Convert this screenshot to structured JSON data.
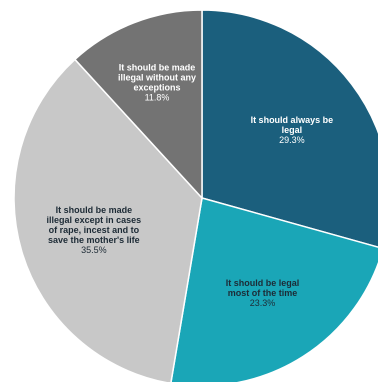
{
  "chart_data": {
    "type": "pie",
    "title": "",
    "slices": [
      {
        "label": [
          "It should always be",
          "legal"
        ],
        "value_label": "29.3%",
        "value": 29.3,
        "color": "#1b5f7d",
        "text_color": "#ffffff"
      },
      {
        "label": [
          "It should be legal",
          "most of the time"
        ],
        "value_label": "23.3%",
        "value": 23.3,
        "color": "#1aa6b7",
        "text_color": "#1d2b36"
      },
      {
        "label": [
          "It should be made",
          "illegal except in cases",
          "of rape, incest and to",
          "save the mother's life"
        ],
        "value_label": "35.5%",
        "value": 35.5,
        "color": "#c8c8c8",
        "text_color": "#1d2b36"
      },
      {
        "label": [
          "It should be made",
          "illegal without any",
          "exceptions"
        ],
        "value_label": "11.8%",
        "value": 11.8,
        "color": "#737373",
        "text_color": "#ffffff"
      }
    ]
  }
}
